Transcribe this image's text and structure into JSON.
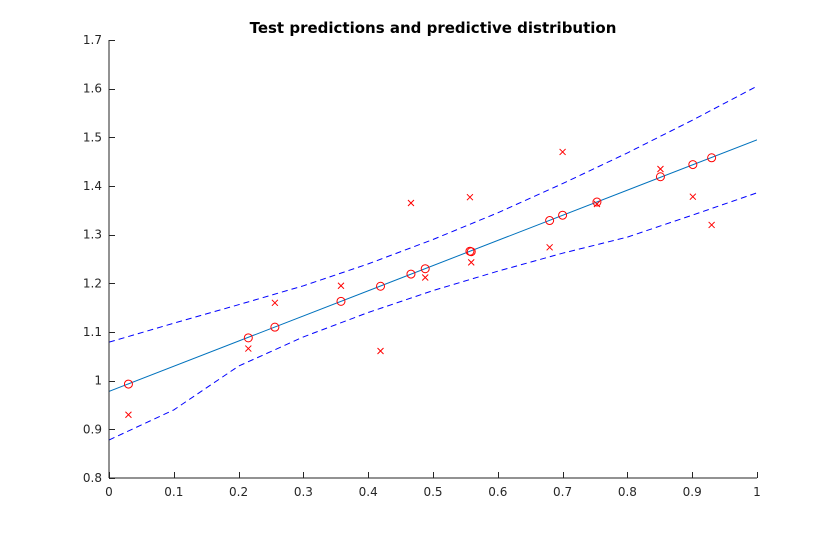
{
  "chart_data": {
    "type": "scatter",
    "title": "Test predictions and predictive distribution",
    "xlabel": "",
    "ylabel": "",
    "xlim": [
      0,
      1
    ],
    "ylim": [
      0.8,
      1.7
    ],
    "grid": false,
    "xticks": [
      "0",
      "0.1",
      "0.2",
      "0.3",
      "0.4",
      "0.5",
      "0.6",
      "0.7",
      "0.8",
      "0.9",
      "1"
    ],
    "yticks": [
      "0.8",
      "0.9",
      "1",
      "1.1",
      "1.2",
      "1.3",
      "1.4",
      "1.5",
      "1.6",
      "1.7"
    ],
    "series": [
      {
        "kind": "line",
        "style": "solid",
        "color": "#0072BD",
        "x": [
          0,
          1
        ],
        "y": [
          0.978,
          1.495
        ]
      },
      {
        "kind": "line",
        "style": "dashed",
        "color": "#0000FF",
        "x": [
          0,
          0.1,
          0.2,
          0.3,
          0.4,
          0.5,
          0.6,
          0.7,
          0.8,
          0.9,
          1.0
        ],
        "y": [
          1.079,
          1.118,
          1.156,
          1.195,
          1.24,
          1.29,
          1.345,
          1.405,
          1.468,
          1.535,
          1.605
        ]
      },
      {
        "kind": "line",
        "style": "dashed",
        "color": "#0000FF",
        "x": [
          0,
          0.1,
          0.2,
          0.3,
          0.4,
          0.5,
          0.6,
          0.7,
          0.8,
          0.9,
          1.0
        ],
        "y": [
          0.878,
          0.94,
          1.03,
          1.09,
          1.14,
          1.185,
          1.225,
          1.262,
          1.295,
          1.34,
          1.386
        ]
      },
      {
        "kind": "markers",
        "marker": "circle",
        "color": "#FF0000",
        "x": [
          0.03,
          0.215,
          0.256,
          0.358,
          0.419,
          0.466,
          0.488,
          0.557,
          0.559,
          0.68,
          0.7,
          0.753,
          0.851,
          0.901,
          0.93
        ],
        "y": [
          0.993,
          1.088,
          1.11,
          1.163,
          1.194,
          1.219,
          1.23,
          1.266,
          1.265,
          1.329,
          1.34,
          1.367,
          1.419,
          1.444,
          1.458
        ]
      },
      {
        "kind": "markers",
        "marker": "x",
        "color": "#FF0000",
        "x": [
          0.03,
          0.215,
          0.256,
          0.358,
          0.419,
          0.466,
          0.488,
          0.557,
          0.559,
          0.68,
          0.7,
          0.753,
          0.851,
          0.901,
          0.93
        ],
        "y": [
          0.93,
          1.066,
          1.16,
          1.195,
          1.061,
          1.365,
          1.212,
          1.377,
          1.243,
          1.274,
          1.47,
          1.363,
          1.435,
          1.378,
          1.32
        ]
      }
    ]
  }
}
